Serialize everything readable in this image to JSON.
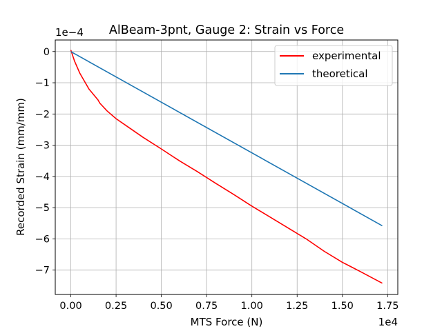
{
  "chart_data": {
    "type": "line",
    "title": "AlBeam-3pnt, Gauge 2: Strain vs Force",
    "xlabel": "MTS Force (N)",
    "ylabel": "Recorded Strain (mm/mm)",
    "x_offset_label": "1e4",
    "y_offset_label": "1e−4",
    "xlim": [
      -0.086,
      1.806
    ],
    "ylim": [
      -7.78,
      0.37
    ],
    "xticks": [
      0.0,
      0.25,
      0.5,
      0.75,
      1.0,
      1.25,
      1.5,
      1.75
    ],
    "xtick_labels": [
      "0.00",
      "0.25",
      "0.50",
      "0.75",
      "1.00",
      "1.25",
      "1.50",
      "1.75"
    ],
    "yticks": [
      0,
      -1,
      -2,
      -3,
      -4,
      -5,
      -6,
      -7
    ],
    "ytick_labels": [
      "0",
      "−1",
      "−2",
      "−3",
      "−4",
      "−5",
      "−6",
      "−7"
    ],
    "grid": true,
    "legend": "upper-right",
    "series": [
      {
        "name": "experimental",
        "color": "#ff0000",
        "x": [
          0.0,
          0.02,
          0.05,
          0.1,
          0.15,
          0.16,
          0.2,
          0.25,
          0.3,
          0.4,
          0.5,
          0.6,
          0.7,
          0.8,
          0.9,
          1.0,
          1.1,
          1.2,
          1.3,
          1.4,
          1.5,
          1.6,
          1.72
        ],
        "y": [
          0.05,
          -0.3,
          -0.7,
          -1.2,
          -1.55,
          -1.65,
          -1.9,
          -2.15,
          -2.35,
          -2.75,
          -3.12,
          -3.5,
          -3.85,
          -4.22,
          -4.58,
          -4.95,
          -5.3,
          -5.65,
          -6.0,
          -6.4,
          -6.75,
          -7.05,
          -7.42
        ]
      },
      {
        "name": "theoretical",
        "color": "#1f77b4",
        "x": [
          0.0,
          1.72
        ],
        "y": [
          0.0,
          -5.58
        ]
      }
    ]
  }
}
